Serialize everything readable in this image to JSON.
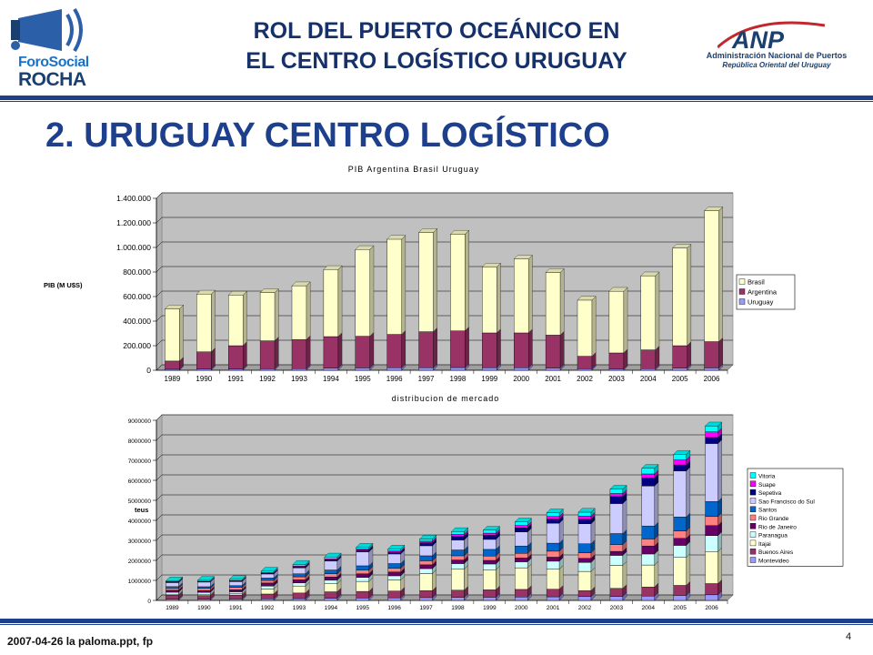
{
  "header": {
    "title_line1": "ROL DEL PUERTO OCEÁNICO EN",
    "title_line2": "EL CENTRO LOGÍSTICO URUGUAY"
  },
  "logo_left": {
    "line1": "ForoSocial",
    "line2": "ROCHA"
  },
  "logo_right": {
    "mark": "ANP",
    "line1": "Administración Nacional de Puertos",
    "line2": "República Oriental del Uruguay"
  },
  "section_title": "2. URUGUAY CENTRO LOGÍSTICO",
  "colors": {
    "brand_blue": "#1d3f8c",
    "title_blue": "#16306a"
  },
  "chart_data": [
    {
      "type": "bar",
      "stacked": true,
      "title": "PIB Argentina Brasil Uruguay",
      "ylabel": "PIB (M U$S)",
      "xlabel": "",
      "ylim": [
        0,
        1400000
      ],
      "yticks": [
        0,
        200000,
        400000,
        600000,
        800000,
        1000000,
        1200000,
        1400000
      ],
      "ytick_labels": [
        "0",
        "200.000",
        "400.000",
        "600.000",
        "800.000",
        "1.000.000",
        "1.200.000",
        "1.400.000"
      ],
      "categories": [
        "1989",
        "1990",
        "1991",
        "1992",
        "1993",
        "1994",
        "1995",
        "1996",
        "1997",
        "1998",
        "1999",
        "2000",
        "2001",
        "2002",
        "2003",
        "2004",
        "2005",
        "2006"
      ],
      "legend_position": "right",
      "series": [
        {
          "name": "Uruguay",
          "color": "#9999ff",
          "values": [
            8000,
            9000,
            10000,
            12000,
            13000,
            17000,
            19000,
            20000,
            21000,
            22000,
            21000,
            20000,
            18000,
            12000,
            11000,
            13000,
            17000,
            19000
          ]
        },
        {
          "name": "Argentina",
          "color": "#993366",
          "values": [
            67000,
            141000,
            190000,
            228000,
            237000,
            257000,
            258000,
            272000,
            293000,
            299000,
            283000,
            284000,
            268000,
            102000,
            130000,
            153000,
            183000,
            214000
          ]
        },
        {
          "name": "Brasil",
          "color": "#ffffcc",
          "values": [
            425000,
            470000,
            412000,
            392000,
            438000,
            546000,
            706000,
            775000,
            808000,
            787000,
            537000,
            602000,
            510000,
            457000,
            502000,
            603000,
            795000,
            1066000
          ]
        }
      ]
    },
    {
      "type": "bar",
      "stacked": true,
      "title": "distribucion de mercado",
      "ylabel": "teus",
      "xlabel": "",
      "ylim": [
        0,
        9000000
      ],
      "yticks": [
        0,
        1000000,
        2000000,
        3000000,
        4000000,
        5000000,
        6000000,
        7000000,
        8000000,
        9000000
      ],
      "ytick_labels": [
        "0",
        "1000000",
        "2000000",
        "3000000",
        "4000000",
        "5000000",
        "6000000",
        "7000000",
        "8000000",
        "9000000"
      ],
      "categories": [
        "1989",
        "1990",
        "1991",
        "1992",
        "1993",
        "1994",
        "1995",
        "1996",
        "1997",
        "1998",
        "1999",
        "2000",
        "2001",
        "2002",
        "2003",
        "2004",
        "2005",
        "2006"
      ],
      "legend_position": "right",
      "series": [
        {
          "name": "Montevideo",
          "color": "#9999ff",
          "values": [
            60000,
            65000,
            70000,
            80000,
            90000,
            110000,
            120000,
            130000,
            140000,
            150000,
            160000,
            170000,
            180000,
            190000,
            200000,
            220000,
            250000,
            280000
          ]
        },
        {
          "name": "Buenos Aires",
          "color": "#993366",
          "values": [
            200000,
            180000,
            200000,
            240000,
            280000,
            320000,
            330000,
            340000,
            350000,
            360000,
            370000,
            380000,
            380000,
            300000,
            400000,
            450000,
            500000,
            560000
          ]
        },
        {
          "name": "Itajai",
          "color": "#ffffcc",
          "values": [
            50000,
            60000,
            60000,
            250000,
            350000,
            400000,
            500000,
            550000,
            850000,
            1050000,
            1000000,
            1080000,
            1000000,
            960000,
            1150000,
            1100000,
            1400000,
            1600000
          ]
        },
        {
          "name": "Paranagua",
          "color": "#ccffff",
          "values": [
            100000,
            100000,
            100000,
            150000,
            160000,
            180000,
            200000,
            210000,
            250000,
            280000,
            290000,
            300000,
            400000,
            450000,
            500000,
            550000,
            600000,
            800000
          ]
        },
        {
          "name": "Rio de Janeiro",
          "color": "#660066",
          "values": [
            100000,
            90000,
            100000,
            150000,
            150000,
            160000,
            180000,
            190000,
            190000,
            180000,
            180000,
            190000,
            200000,
            200000,
            200000,
            400000,
            350000,
            500000
          ]
        },
        {
          "name": "Rio Grande",
          "color": "#ff8080",
          "values": [
            100000,
            110000,
            120000,
            130000,
            150000,
            160000,
            180000,
            190000,
            200000,
            210000,
            220000,
            230000,
            300000,
            280000,
            340000,
            350000,
            370000,
            450000
          ]
        },
        {
          "name": "Santos",
          "color": "#0066cc",
          "values": [
            80000,
            80000,
            90000,
            120000,
            150000,
            190000,
            220000,
            230000,
            250000,
            290000,
            330000,
            370000,
            400000,
            450000,
            550000,
            650000,
            700000,
            750000
          ]
        },
        {
          "name": "Sao Francisco do Sul",
          "color": "#ccccff",
          "values": [
            200000,
            230000,
            200000,
            200000,
            300000,
            450000,
            700000,
            480000,
            500000,
            500000,
            500000,
            700000,
            1000000,
            1000000,
            1500000,
            2000000,
            2300000,
            2900000
          ]
        },
        {
          "name": "Sepetiva",
          "color": "#000080",
          "values": [
            30000,
            20000,
            30000,
            40000,
            50000,
            60000,
            80000,
            90000,
            150000,
            180000,
            200000,
            200000,
            200000,
            220000,
            350000,
            400000,
            300000,
            300000
          ]
        },
        {
          "name": "Suape",
          "color": "#ff00ff",
          "values": [
            20000,
            20000,
            20000,
            30000,
            40000,
            50000,
            60000,
            60000,
            80000,
            100000,
            110000,
            120000,
            130000,
            160000,
            150000,
            200000,
            250000,
            280000
          ]
        },
        {
          "name": "Vitoria",
          "color": "#00ffff",
          "values": [
            40000,
            50000,
            60000,
            70000,
            80000,
            90000,
            90000,
            100000,
            110000,
            140000,
            150000,
            180000,
            190000,
            200000,
            220000,
            280000,
            280000,
            300000
          ]
        }
      ]
    }
  ],
  "footer": {
    "left": "2007-04-26  la paloma.ppt, fp",
    "page": "4"
  }
}
